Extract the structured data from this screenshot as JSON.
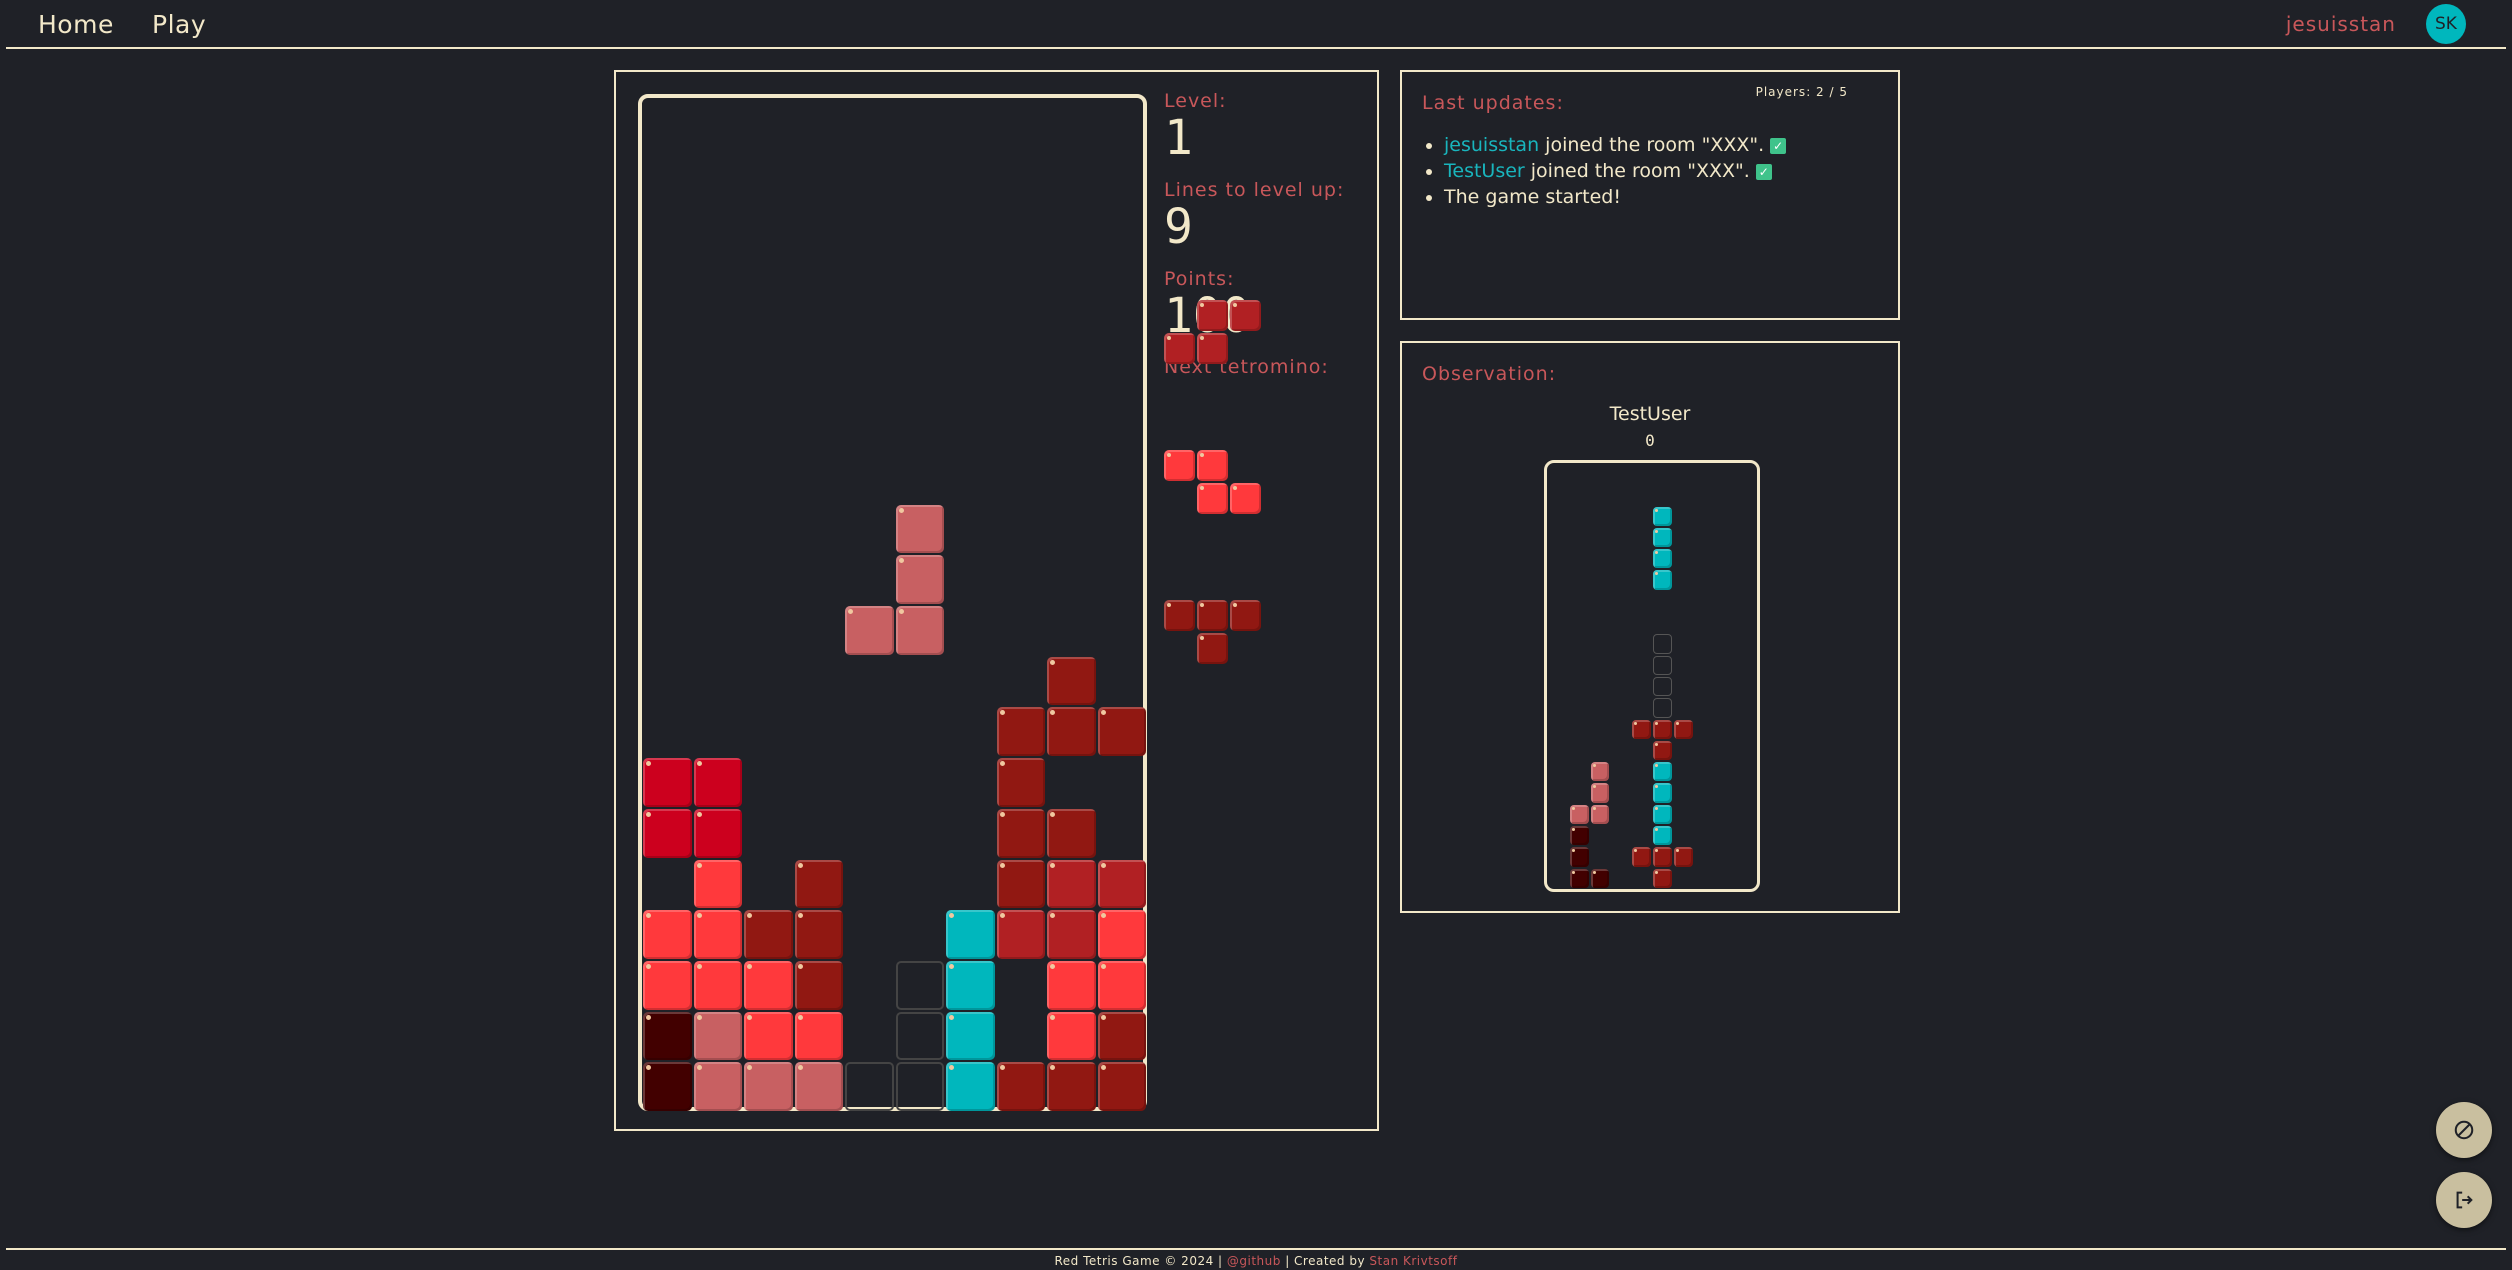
{
  "nav": {
    "home": "Home",
    "play": "Play",
    "username": "jesuisstan",
    "avatar_initials": "SK"
  },
  "colors": {
    "background": "#1f2127",
    "foreground": "#f2e8c9",
    "accent_label": "#c8575a",
    "cyan": "#00b7bd"
  },
  "palette": {
    "D": "#420000",
    "P": "#c86062",
    "R": "#ff393c",
    "M": "#911812",
    "C": "#b12023",
    "B": "#cc001e",
    "I": "#00b7bd"
  },
  "stats": {
    "level_label": "Level:",
    "level_value": "1",
    "lines_label": "Lines to level up:",
    "lines_value": "9",
    "points_label": "Points:",
    "points_value": "100",
    "next_label": "Next tetromino:"
  },
  "next_tetrominoes": [
    {
      "shape": "S",
      "color": "C",
      "cells": [
        [
          0,
          1
        ],
        [
          0,
          2
        ],
        [
          1,
          0
        ],
        [
          1,
          1
        ]
      ]
    },
    {
      "shape": "Z",
      "color": "R",
      "cells": [
        [
          0,
          0
        ],
        [
          0,
          1
        ],
        [
          1,
          1
        ],
        [
          1,
          2
        ]
      ]
    },
    {
      "shape": "T",
      "color": "M",
      "cells": [
        [
          0,
          0
        ],
        [
          0,
          1
        ],
        [
          0,
          2
        ],
        [
          1,
          1
        ]
      ]
    }
  ],
  "board": {
    "cols": 10,
    "rows": 20,
    "grid": [
      "..........",
      "..........",
      "..........",
      "..........",
      "..........",
      "..........",
      "..........",
      "..........",
      ".....P....",
      ".....P....",
      "....PP....",
      "........M.",
      ".......MMM",
      "BB.....M..",
      "BB.....MM.",
      ".R.M...MCC",
      "RRMM..ICCR",
      "RRRM.gI.RR",
      "DPRR.gI.RM",
      "DPPPggIMMM"
    ]
  },
  "updates": {
    "title": "Last updates:",
    "players": "Players: 2 / 5",
    "items": [
      {
        "user": "jesuisstan",
        "text": " joined the room \"XXX\".",
        "check": true
      },
      {
        "user": "TestUser",
        "text": " joined the room \"XXX\".",
        "check": true
      },
      {
        "user": "",
        "text": "The game started!",
        "check": false
      }
    ]
  },
  "observation": {
    "title": "Observation:",
    "player_name": "TestUser",
    "player_score": "0",
    "grid": [
      "..........",
      "..........",
      ".....I....",
      ".....I....",
      ".....I....",
      ".....I....",
      "..........",
      "..........",
      ".....g....",
      ".....g....",
      ".....g....",
      ".....g....",
      "....MMM...",
      ".....M....",
      "..P..I....",
      "..P..I....",
      ".PP..I....",
      ".D...I....",
      ".D..MMM...",
      ".DD..M...."
    ]
  },
  "actions": {
    "block_icon": "block-icon",
    "exit_icon": "exit-icon"
  },
  "footer": {
    "prefix": "Red Tetris Game © 2024 | ",
    "github": "@github",
    "middle": " | Created by ",
    "author": "Stan Krivtsoff"
  }
}
